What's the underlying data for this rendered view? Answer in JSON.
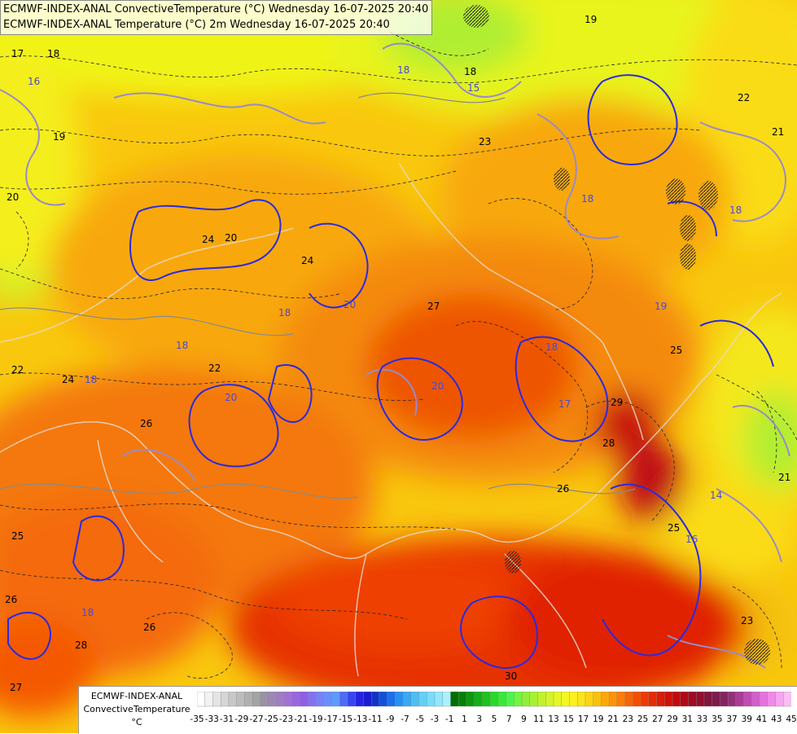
{
  "title": {
    "line1": "ECMWF-INDEX-ANAL ConvectiveTemperature (°C) Wednesday 16-07-2025 20:40",
    "line2": "ECMWF-INDEX-ANAL Temperature (°C) 2m Wednesday 16-07-2025 20:40"
  },
  "legend": {
    "line1": "ECMWF-INDEX-ANAL",
    "line2": "ConvectiveTemperature",
    "unit": "°C",
    "tick_labels": [
      "-35",
      "-33",
      "-31",
      "-29",
      "-27",
      "-25",
      "-23",
      "-21",
      "-19",
      "-17",
      "-15",
      "-13",
      "-11",
      "-9",
      "-7",
      "-5",
      "-3",
      "-1",
      "1",
      "3",
      "5",
      "7",
      "9",
      "11",
      "13",
      "15",
      "17",
      "19",
      "21",
      "23",
      "25",
      "27",
      "29",
      "31",
      "33",
      "35",
      "37",
      "39",
      "41",
      "43",
      "45"
    ],
    "colors": [
      "#ffffff",
      "#f2f2f2",
      "#e4e4e4",
      "#d6d6d6",
      "#c8c8c8",
      "#bcbcbc",
      "#b0b0b0",
      "#a4a4a4",
      "#9a90a8",
      "#9f86b8",
      "#a07cc6",
      "#a070d4",
      "#9a66e0",
      "#8e5ee8",
      "#8272f0",
      "#7682f6",
      "#6a8efa",
      "#5e9afc",
      "#4a6cf8",
      "#3646f0",
      "#2424e0",
      "#1a1ad0",
      "#1034c8",
      "#1050d8",
      "#1a70e8",
      "#2890f0",
      "#38a8f4",
      "#4cbef6",
      "#60d0f8",
      "#78dcfa",
      "#90e8fc",
      "#a8f2fe",
      "#007000",
      "#068006",
      "#0c9a0c",
      "#14b014",
      "#1cc41c",
      "#2ad82a",
      "#3ae83a",
      "#4cf44c",
      "#70f640",
      "#8ef03a",
      "#a8f034",
      "#c0f22e",
      "#d4f428",
      "#e6f624",
      "#f4f622",
      "#fcf020",
      "#fce418",
      "#fcd412",
      "#fcc00e",
      "#fca80c",
      "#fc920a",
      "#fc7c08",
      "#f86406",
      "#f44e04",
      "#ee3a04",
      "#e62a04",
      "#dc1c06",
      "#ce120a",
      "#c00a10",
      "#b00818",
      "#a00a22",
      "#90102e",
      "#82163c",
      "#7c1c4c",
      "#84245e",
      "#92307a",
      "#a83c96",
      "#be4cb2",
      "#d45ecc",
      "#e672e0",
      "#f08ae8",
      "#f6a4ee",
      "#fabef4"
    ]
  },
  "labels": {
    "iso_convective": [
      "17",
      "18",
      "19",
      "20",
      "21",
      "22",
      "23",
      "24",
      "24",
      "25",
      "25",
      "26",
      "26",
      "26",
      "27",
      "27",
      "28",
      "28",
      "29",
      "30",
      "26",
      "24",
      "22",
      "21",
      "20",
      "19",
      "18",
      "25",
      "23",
      "22"
    ],
    "iso_temp_2m": [
      "16",
      "18",
      "18",
      "18",
      "20",
      "20",
      "20",
      "18",
      "18",
      "18",
      "18",
      "17",
      "15",
      "14",
      "16",
      "18",
      "19"
    ]
  }
}
